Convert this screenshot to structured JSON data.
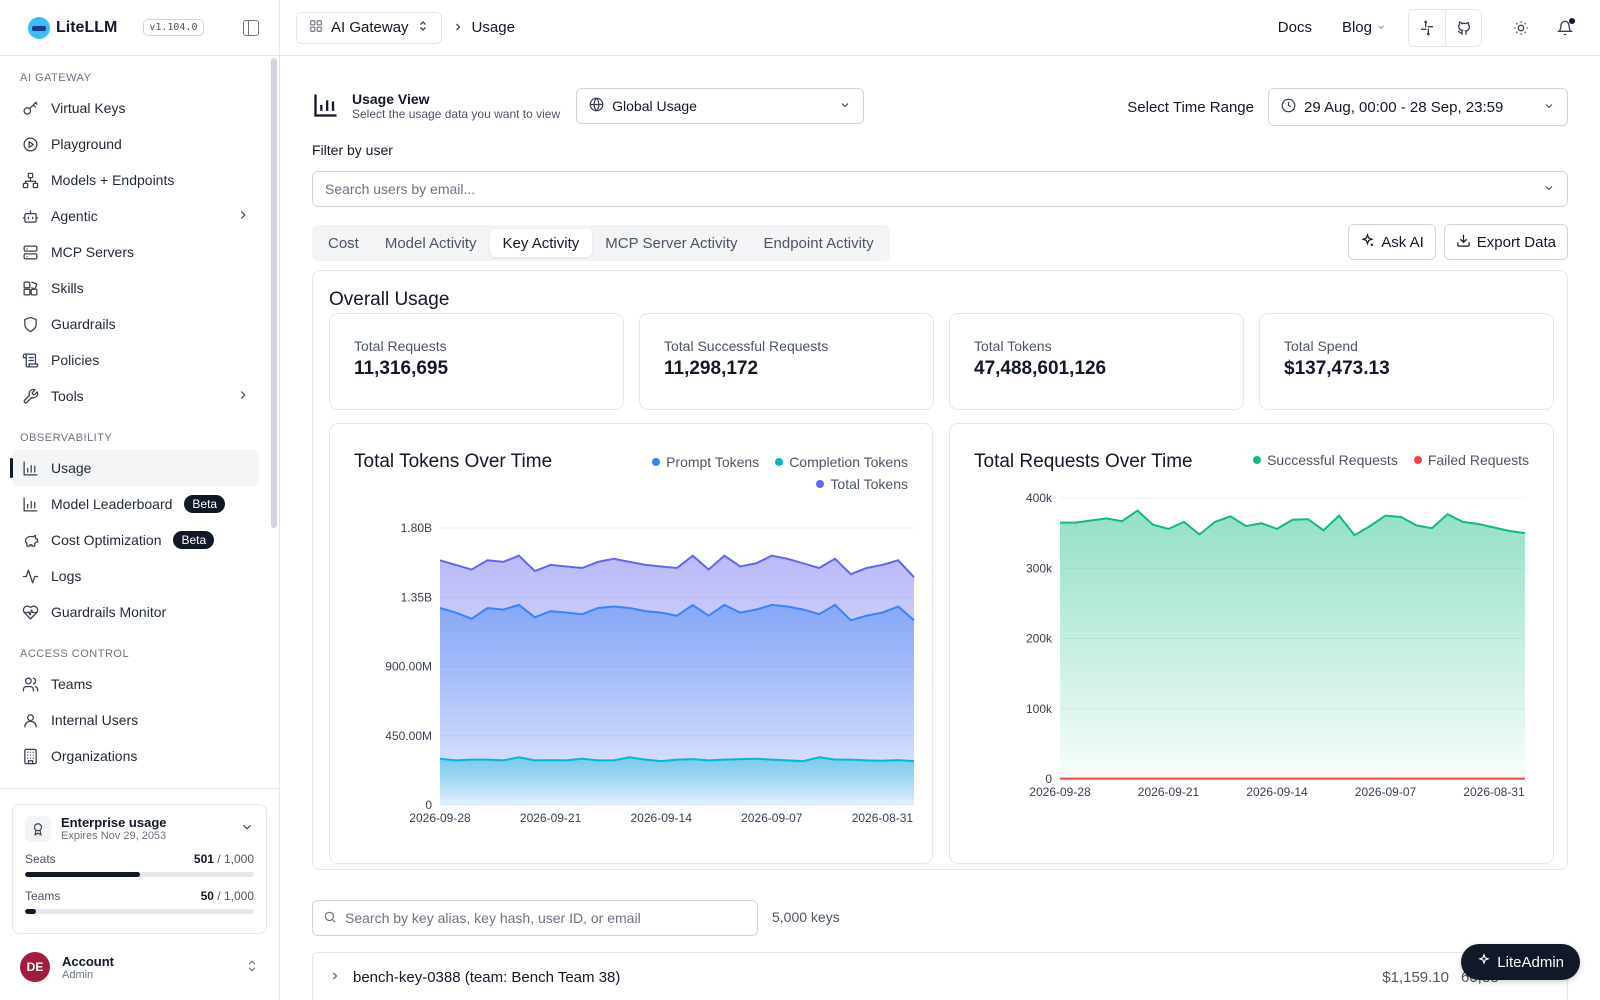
{
  "app": {
    "name": "LiteLLM",
    "version": "v1.104.0"
  },
  "sidebar": {
    "sections": [
      {
        "title": "AI GATEWAY",
        "items": [
          {
            "label": "Virtual Keys",
            "icon": "key-icon"
          },
          {
            "label": "Playground",
            "icon": "play-circle-icon"
          },
          {
            "label": "Models + Endpoints",
            "icon": "network-icon"
          },
          {
            "label": "Agentic",
            "icon": "bot-icon",
            "expandable": true
          },
          {
            "label": "MCP Servers",
            "icon": "server-icon"
          },
          {
            "label": "Skills",
            "icon": "blocks-icon"
          },
          {
            "label": "Guardrails",
            "icon": "shield-icon"
          },
          {
            "label": "Policies",
            "icon": "scroll-icon"
          },
          {
            "label": "Tools",
            "icon": "wrench-icon",
            "expandable": true
          }
        ]
      },
      {
        "title": "OBSERVABILITY",
        "items": [
          {
            "label": "Usage",
            "icon": "bar-chart-icon",
            "active": true
          },
          {
            "label": "Model Leaderboard",
            "icon": "bar-chart-icon",
            "badge": "Beta"
          },
          {
            "label": "Cost Optimization",
            "icon": "piggy-bank-icon",
            "badge": "Beta"
          },
          {
            "label": "Logs",
            "icon": "activity-icon"
          },
          {
            "label": "Guardrails Monitor",
            "icon": "heart-pulse-icon"
          }
        ]
      },
      {
        "title": "ACCESS CONTROL",
        "items": [
          {
            "label": "Teams",
            "icon": "users-icon"
          },
          {
            "label": "Internal Users",
            "icon": "user-icon"
          },
          {
            "label": "Organizations",
            "icon": "building-icon"
          }
        ]
      }
    ],
    "enterprise": {
      "title": "Enterprise usage",
      "expires": "Expires Nov 29, 2053",
      "seats_label": "Seats",
      "seats_used": "501",
      "seats_total": "/ 1,000",
      "seats_fraction": 0.501,
      "teams_label": "Teams",
      "teams_used": "50",
      "teams_total": "/ 1,000",
      "teams_fraction": 0.05
    },
    "account": {
      "initials": "DE",
      "name": "Account",
      "role": "Admin"
    }
  },
  "topbar": {
    "gateway_label": "AI Gateway",
    "breadcrumb_current": "Usage",
    "docs_label": "Docs",
    "blog_label": "Blog"
  },
  "usage": {
    "view_title": "Usage View",
    "view_subtitle": "Select the usage data you want to view",
    "view_selected": "Global Usage",
    "time_range_label": "Select Time Range",
    "time_range_value": "29 Aug, 00:00 - 28 Sep, 23:59",
    "filter_label": "Filter by user",
    "filter_placeholder": "Search users by email...",
    "tabs": [
      "Cost",
      "Model Activity",
      "Key Activity",
      "MCP Server Activity",
      "Endpoint Activity"
    ],
    "active_tab": 2,
    "ask_ai_label": "Ask AI",
    "export_label": "Export Data",
    "overall_title": "Overall Usage",
    "stats": [
      {
        "label": "Total Requests",
        "value": "11,316,695"
      },
      {
        "label": "Total Successful Requests",
        "value": "11,298,172"
      },
      {
        "label": "Total Tokens",
        "value": "47,488,601,126"
      },
      {
        "label": "Total Spend",
        "value": "$137,473.13"
      }
    ],
    "key_search_placeholder": "Search by key alias, key hash, user ID, or email",
    "key_count": "5,000 keys",
    "key_rows": [
      {
        "name": "bench-key-0388 (team: Bench Team 38)",
        "spend": "$1,159.10",
        "requests": "60,88"
      }
    ],
    "liteadmin_label": "LiteAdmin"
  },
  "colors": {
    "prompt": "#3b82f6",
    "completion": "#06b6d4",
    "total": "#6366f1",
    "success": "#10b981",
    "failed": "#ef4444"
  },
  "chart_data": [
    {
      "type": "area",
      "title": "Total Tokens Over Time",
      "x": [
        "2026-09-28",
        "2026-09-27",
        "2026-09-26",
        "2026-09-25",
        "2026-09-24",
        "2026-09-23",
        "2026-09-22",
        "2026-09-21",
        "2026-09-20",
        "2026-09-19",
        "2026-09-18",
        "2026-09-17",
        "2026-09-16",
        "2026-09-15",
        "2026-09-14",
        "2026-09-13",
        "2026-09-12",
        "2026-09-11",
        "2026-09-10",
        "2026-09-09",
        "2026-09-08",
        "2026-09-07",
        "2026-09-06",
        "2026-09-05",
        "2026-09-04",
        "2026-09-03",
        "2026-09-02",
        "2026-09-01",
        "2026-08-31",
        "2026-08-30",
        "2026-08-29"
      ],
      "x_ticks": [
        "2026-09-28",
        "2026-09-21",
        "2026-09-14",
        "2026-09-07",
        "2026-08-31"
      ],
      "y_ticks": [
        "0",
        "450.00M",
        "900.00M",
        "1.35B",
        "1.80B"
      ],
      "ylim": [
        0,
        1800000000
      ],
      "series": [
        {
          "name": "Completion Tokens",
          "values": [
            300,
            290,
            295,
            295,
            290,
            310,
            290,
            292,
            290,
            300,
            290,
            290,
            310,
            295,
            285,
            295,
            298,
            290,
            295,
            298,
            300,
            295,
            290,
            285,
            310,
            295,
            295,
            290,
            288,
            292,
            285
          ]
        },
        {
          "name": "Prompt Tokens",
          "values": [
            1280,
            1250,
            1210,
            1280,
            1270,
            1300,
            1220,
            1260,
            1250,
            1240,
            1280,
            1290,
            1280,
            1260,
            1250,
            1230,
            1300,
            1230,
            1300,
            1250,
            1270,
            1300,
            1290,
            1270,
            1240,
            1300,
            1200,
            1230,
            1250,
            1290,
            1200
          ]
        },
        {
          "name": "Total Tokens",
          "values": [
            1590,
            1560,
            1530,
            1590,
            1580,
            1620,
            1520,
            1560,
            1550,
            1540,
            1580,
            1600,
            1580,
            1560,
            1550,
            1540,
            1620,
            1530,
            1620,
            1550,
            1570,
            1620,
            1600,
            1570,
            1540,
            1600,
            1500,
            1540,
            1560,
            1590,
            1480
          ]
        }
      ],
      "value_scale": "millions"
    },
    {
      "type": "area",
      "title": "Total Requests Over Time",
      "x": [
        "2026-09-28",
        "2026-09-27",
        "2026-09-26",
        "2026-09-25",
        "2026-09-24",
        "2026-09-23",
        "2026-09-22",
        "2026-09-21",
        "2026-09-20",
        "2026-09-19",
        "2026-09-18",
        "2026-09-17",
        "2026-09-16",
        "2026-09-15",
        "2026-09-14",
        "2026-09-13",
        "2026-09-12",
        "2026-09-11",
        "2026-09-10",
        "2026-09-09",
        "2026-09-08",
        "2026-09-07",
        "2026-09-06",
        "2026-09-05",
        "2026-09-04",
        "2026-09-03",
        "2026-09-02",
        "2026-09-01",
        "2026-08-31",
        "2026-08-30",
        "2026-08-29"
      ],
      "x_ticks": [
        "2026-09-28",
        "2026-09-21",
        "2026-09-14",
        "2026-09-07",
        "2026-08-31"
      ],
      "y_ticks": [
        "0",
        "100k",
        "200k",
        "300k",
        "400k"
      ],
      "ylim": [
        0,
        400000
      ],
      "series": [
        {
          "name": "Successful Requests",
          "values": [
            365000,
            365000,
            368000,
            371000,
            367000,
            382000,
            362000,
            356000,
            366000,
            348000,
            366000,
            374000,
            360000,
            364000,
            356000,
            369000,
            370000,
            354000,
            375000,
            347000,
            360000,
            375000,
            373000,
            361000,
            357000,
            377000,
            366000,
            363000,
            358000,
            353000,
            350000
          ]
        },
        {
          "name": "Failed Requests",
          "values": [
            600,
            600,
            600,
            600,
            600,
            600,
            600,
            600,
            600,
            600,
            600,
            600,
            600,
            600,
            600,
            600,
            600,
            600,
            600,
            600,
            600,
            600,
            600,
            600,
            600,
            600,
            600,
            600,
            600,
            600,
            600
          ]
        }
      ]
    }
  ]
}
